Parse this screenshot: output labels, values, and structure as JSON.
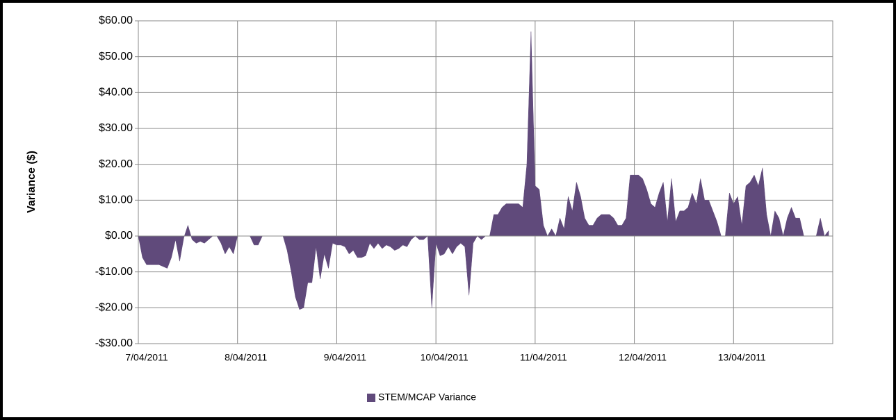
{
  "chart_data": {
    "type": "area",
    "y_label": "Variance ($)",
    "ylim": [
      -30,
      60
    ],
    "yticks": [
      {
        "value": -30,
        "label": "-$30.00"
      },
      {
        "value": -20,
        "label": "-$20.00"
      },
      {
        "value": -10,
        "label": "-$10.00"
      },
      {
        "value": 0,
        "label": "$0.00"
      },
      {
        "value": 10,
        "label": "$10.00"
      },
      {
        "value": 20,
        "label": "$20.00"
      },
      {
        "value": 30,
        "label": "$30.00"
      },
      {
        "value": 40,
        "label": "$40.00"
      },
      {
        "value": 50,
        "label": "$50.00"
      },
      {
        "value": 60,
        "label": "$60.00"
      }
    ],
    "grid": true,
    "legend": "bottom",
    "categories": [
      "7/04/2011",
      null,
      null,
      null,
      null,
      null,
      null,
      null,
      null,
      null,
      null,
      null,
      null,
      null,
      null,
      null,
      null,
      null,
      null,
      null,
      null,
      null,
      null,
      null,
      "8/04/2011",
      null,
      null,
      null,
      null,
      null,
      null,
      null,
      null,
      null,
      null,
      null,
      null,
      null,
      null,
      null,
      null,
      null,
      null,
      null,
      null,
      null,
      null,
      null,
      "9/04/2011",
      null,
      null,
      null,
      null,
      null,
      null,
      null,
      null,
      null,
      null,
      null,
      null,
      null,
      null,
      null,
      null,
      null,
      null,
      null,
      null,
      null,
      null,
      null,
      "10/04/2011",
      null,
      null,
      null,
      null,
      null,
      null,
      null,
      null,
      null,
      null,
      null,
      null,
      null,
      null,
      null,
      null,
      null,
      null,
      null,
      null,
      null,
      null,
      null,
      "11/04/2011",
      null,
      null,
      null,
      null,
      null,
      null,
      null,
      null,
      null,
      null,
      null,
      null,
      null,
      null,
      null,
      null,
      null,
      null,
      null,
      null,
      null,
      null,
      null,
      "12/04/2011",
      null,
      null,
      null,
      null,
      null,
      null,
      null,
      null,
      null,
      null,
      null,
      null,
      null,
      null,
      null,
      null,
      null,
      null,
      null,
      null,
      null,
      null,
      null,
      "13/04/2011",
      null,
      null,
      null,
      null,
      null,
      null,
      null,
      null,
      null,
      null,
      null,
      null,
      null,
      null,
      null,
      null,
      null,
      null,
      null,
      null,
      null,
      null,
      null
    ],
    "series": [
      {
        "name": "STEM/MCAP Variance",
        "color": "#604a7b",
        "values": [
          0,
          -6,
          -8,
          -8,
          -8,
          -8,
          -8.5,
          -9,
          -6,
          -1,
          -7,
          -0.5,
          3,
          -1,
          -2,
          -1.5,
          -2,
          -1,
          0,
          0,
          -2,
          -5,
          -3,
          -5,
          0,
          0,
          0,
          0,
          -2.5,
          -2.5,
          0,
          0,
          0,
          0,
          0,
          0,
          -4,
          -10,
          -17,
          -20.5,
          -20,
          -13,
          -13,
          -3,
          -12,
          -5,
          -9,
          -2,
          -2.5,
          -2.5,
          -3,
          -5,
          -4,
          -6,
          -6,
          -5.5,
          -2,
          -3.5,
          -2,
          -3.5,
          -2.5,
          -3,
          -4,
          -3.5,
          -2.5,
          -3,
          -1,
          0,
          -1,
          -1,
          0,
          -20,
          -2,
          -5.5,
          -5,
          -3,
          -5,
          -3,
          -2,
          -3,
          -16.5,
          -2,
          0,
          -1,
          0,
          0,
          6,
          6,
          8,
          9,
          9,
          9,
          9,
          8,
          20,
          57,
          14,
          13,
          3,
          0,
          2,
          0,
          5,
          2,
          11,
          7,
          15,
          11,
          5,
          3,
          3,
          5,
          6,
          6,
          6,
          5,
          3,
          3,
          5,
          17,
          17,
          17,
          16,
          13,
          9,
          8,
          12,
          15,
          4,
          16,
          4,
          7,
          7,
          8,
          12,
          9,
          16,
          10,
          10,
          7,
          4,
          0,
          0,
          12,
          9,
          11,
          3,
          14,
          15,
          17,
          14,
          19,
          6,
          0,
          7,
          5,
          0,
          5,
          8,
          5,
          5,
          0,
          0,
          0,
          0,
          5,
          0,
          1.5
        ]
      }
    ]
  }
}
